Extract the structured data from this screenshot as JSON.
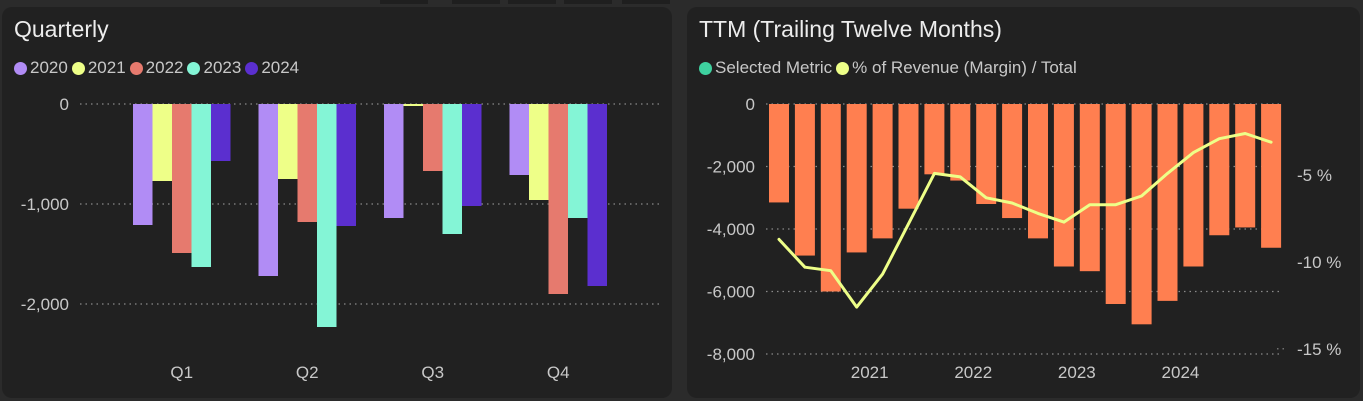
{
  "theme": {
    "background": "#2b2b2b",
    "panel": "#212121",
    "text": "#ededed",
    "muted": "#c8c8c8",
    "grid": "#8a8a8a"
  },
  "panels": {
    "quarterly": {
      "title": "Quarterly",
      "legend": [
        {
          "label": "2020",
          "color": "#b18cf5"
        },
        {
          "label": "2021",
          "color": "#eeff88"
        },
        {
          "label": "2022",
          "color": "#e67a6e"
        },
        {
          "label": "2023",
          "color": "#84f5d6"
        },
        {
          "label": "2024",
          "color": "#5b2fcf"
        }
      ]
    },
    "ttm": {
      "title": "TTM (Trailing Twelve Months)",
      "legend": [
        {
          "label": "Selected Metric",
          "color": "#3ed19f"
        },
        {
          "label": "% of Revenue (Margin) / Total",
          "color": "#eeff88"
        }
      ]
    }
  },
  "chart_data": [
    {
      "type": "bar",
      "categories": [
        "Q1",
        "Q2",
        "Q3",
        "Q4"
      ],
      "series": [
        {
          "name": "2020",
          "color": "#b18cf5",
          "values": [
            -1210,
            -1720,
            -1140,
            -710
          ]
        },
        {
          "name": "2021",
          "color": "#eeff88",
          "values": [
            -770,
            -750,
            -20,
            -960
          ]
        },
        {
          "name": "2022",
          "color": "#e67a6e",
          "values": [
            -1490,
            -1180,
            -670,
            -1900
          ]
        },
        {
          "name": "2023",
          "color": "#84f5d6",
          "values": [
            -1630,
            -2230,
            -1300,
            -1140
          ]
        },
        {
          "name": "2024",
          "color": "#5b2fcf",
          "values": [
            -570,
            -1220,
            -1020,
            -1820
          ]
        }
      ],
      "ylim": [
        -2300,
        0
      ],
      "yticks": [
        0,
        -1000,
        -2000
      ],
      "ytick_labels": [
        "0",
        "-1,000",
        "-2,000"
      ],
      "grid": true,
      "legend_position": "top-left"
    },
    {
      "type": "bar",
      "x": [
        "2020-03",
        "2020-06",
        "2020-09",
        "2020-12",
        "2021-03",
        "2021-06",
        "2021-09",
        "2021-12",
        "2022-03",
        "2022-06",
        "2022-09",
        "2022-12",
        "2023-03",
        "2023-06",
        "2023-09",
        "2023-12",
        "2024-03",
        "2024-06",
        "2024-09",
        "2024-12"
      ],
      "series": [
        {
          "name": "Selected Metric",
          "color": "#ff7f50",
          "type": "bar",
          "values": [
            -3150,
            -4850,
            -6000,
            -4750,
            -4300,
            -3350,
            -2250,
            -2450,
            -3200,
            -3650,
            -4300,
            -5200,
            -5350,
            -6400,
            -7050,
            -6300,
            -5200,
            -4200,
            -3950,
            -4600
          ]
        },
        {
          "name": "% of Revenue (Margin) / Total",
          "color": "#eeff88",
          "type": "line",
          "axis": "right",
          "values": [
            -8.7,
            -10.3,
            -10.5,
            -12.6,
            -10.7,
            -7.8,
            -4.9,
            -5.1,
            -6.3,
            -6.6,
            -7.2,
            -7.7,
            -6.7,
            -6.7,
            -6.2,
            -4.9,
            -3.7,
            -2.9,
            -2.6,
            -3.1
          ]
        }
      ],
      "ylim": [
        -8000,
        0
      ],
      "yticks": [
        0,
        -2000,
        -4000,
        -6000,
        -8000
      ],
      "ytick_labels": [
        "0",
        "-2,000",
        "-4,000",
        "-6,000",
        "-8,000"
      ],
      "y2lim": [
        -15.3,
        -0.9
      ],
      "y2ticks": [
        -5,
        -10,
        -15
      ],
      "y2tick_labels": [
        "-5 %",
        "-10 %",
        "-15 %"
      ],
      "xtick_labels": [
        "2021",
        "2022",
        "2023",
        "2024"
      ],
      "xtick_positions": [
        "2021-01",
        "2022-01",
        "2023-01",
        "2024-01"
      ],
      "grid": true,
      "legend_position": "top-left"
    }
  ]
}
